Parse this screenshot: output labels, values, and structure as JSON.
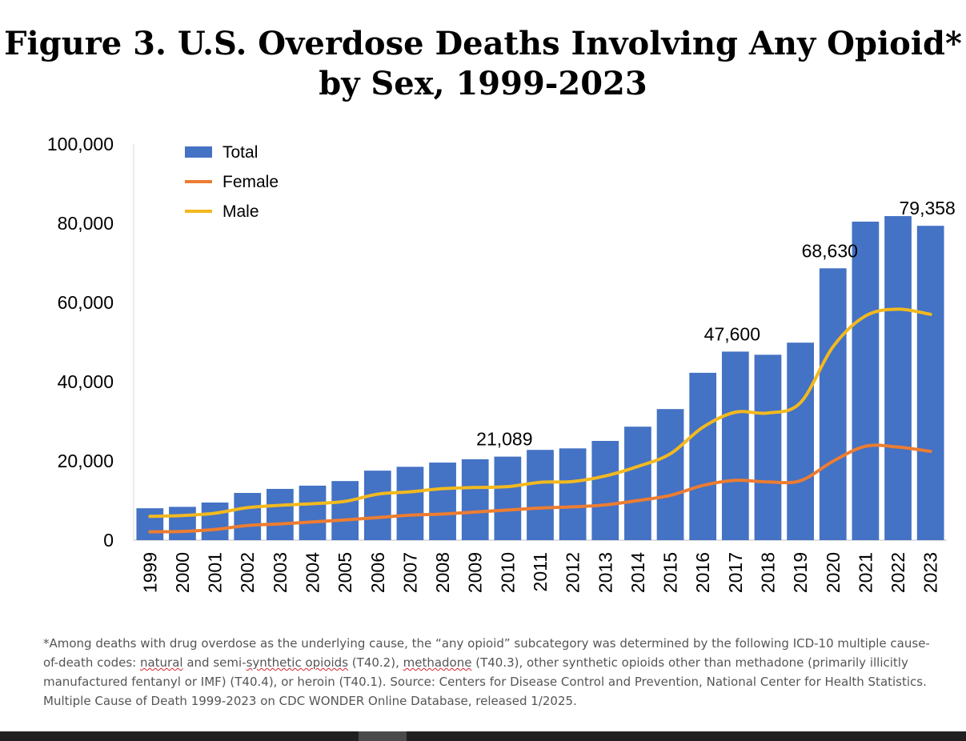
{
  "title": {
    "line1": "Figure 3. U.S. Overdose Deaths Involving Any Opioid*",
    "line2": "by Sex, 1999-2023"
  },
  "footnote": {
    "p1": "*Among deaths with drug overdose as the underlying cause, the “any opioid” subcategory was determined by the following ICD-10 multiple cause-of-death codes: ",
    "w1": "natural",
    "p2": " and semi-",
    "w2": "synthetic opioids",
    "p3": " (T40.2), ",
    "w3": "methadone",
    "p4": " (T40.3), other synthetic opioids other than methadone (primarily illicitly manufactured fentanyl or IMF) (T40.4), or heroin (T40.1). Source: Centers for Disease Control and Prevention, National Center for Health Statistics. Multiple Cause of Death 1999-2023 on CDC WONDER Online Database, released 1/2025."
  },
  "chart_data": {
    "type": "bar",
    "categories": [
      "1999",
      "2000",
      "2001",
      "2002",
      "2003",
      "2004",
      "2005",
      "2006",
      "2007",
      "2008",
      "2009",
      "2010",
      "2011",
      "2012",
      "2013",
      "2014",
      "2015",
      "2016",
      "2017",
      "2018",
      "2019",
      "2020",
      "2021",
      "2022",
      "2023"
    ],
    "ylim": [
      0,
      100000
    ],
    "yticks": [
      0,
      20000,
      40000,
      60000,
      80000,
      100000
    ],
    "ytick_labels": [
      "0",
      "20,000",
      "40,000",
      "60,000",
      "80,000",
      "100,000"
    ],
    "legend_position": "top-left",
    "grid": false,
    "series": [
      {
        "name": "Total",
        "kind": "bar",
        "color": "#4472c4",
        "values": [
          8050,
          8407,
          9496,
          11920,
          12940,
          13756,
          14918,
          17545,
          18516,
          19582,
          20422,
          21089,
          22784,
          23166,
          25052,
          28647,
          33091,
          42249,
          47600,
          46802,
          49860,
          68630,
          80411,
          81806,
          79358
        ]
      },
      {
        "name": "Female",
        "kind": "line",
        "color": "#ed7d31",
        "values": [
          2100,
          2200,
          2700,
          3700,
          4100,
          4600,
          5100,
          5700,
          6300,
          6600,
          7100,
          7600,
          8100,
          8400,
          8900,
          10000,
          11300,
          13800,
          15100,
          14700,
          15000,
          19900,
          23700,
          23500,
          22400
        ]
      },
      {
        "name": "Male",
        "kind": "line",
        "color": "#f2b91f",
        "values": [
          6000,
          6200,
          6800,
          8200,
          8800,
          9200,
          9800,
          11600,
          12200,
          13000,
          13300,
          13500,
          14600,
          14800,
          16200,
          18600,
          21800,
          28500,
          32300,
          32100,
          34700,
          48800,
          56600,
          58300,
          57000
        ]
      }
    ],
    "annotations": [
      {
        "category": "2010",
        "value": 21089,
        "text": "21,089"
      },
      {
        "category": "2017",
        "value": 47600,
        "text": "47,600"
      },
      {
        "category": "2020",
        "value": 68630,
        "text": "68,630"
      },
      {
        "category": "2023",
        "value": 79358,
        "text": "79,358"
      }
    ]
  }
}
